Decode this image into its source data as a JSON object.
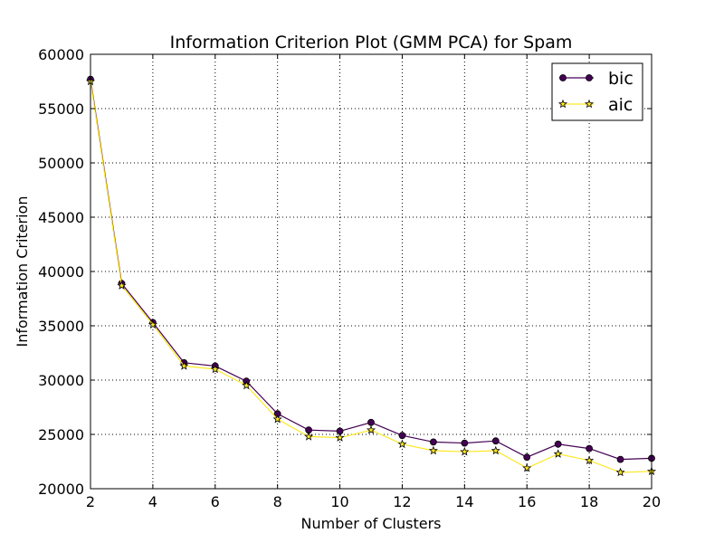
{
  "chart_data": {
    "type": "line",
    "title": "Information Criterion Plot (GMM PCA) for Spam",
    "xlabel": "Number of Clusters",
    "ylabel": "Information Criterion",
    "xlim": [
      2,
      20
    ],
    "ylim": [
      20000,
      60000
    ],
    "xticks": [
      2,
      4,
      6,
      8,
      10,
      12,
      14,
      16,
      18,
      20
    ],
    "yticks": [
      20000,
      25000,
      30000,
      35000,
      40000,
      45000,
      50000,
      55000,
      60000
    ],
    "grid": true,
    "legend_position": "top-right",
    "x": [
      2,
      3,
      4,
      5,
      6,
      7,
      8,
      9,
      10,
      11,
      12,
      13,
      14,
      15,
      16,
      17,
      18,
      19,
      20
    ],
    "series": [
      {
        "name": "bic",
        "color": "#440154",
        "marker": "circle",
        "values": [
          57700,
          38900,
          35300,
          31600,
          31300,
          29900,
          26900,
          25400,
          25300,
          26100,
          24900,
          24300,
          24200,
          24400,
          22900,
          24100,
          23700,
          22700,
          22800
        ]
      },
      {
        "name": "aic",
        "color": "#fde725",
        "marker": "star",
        "values": [
          57500,
          38700,
          35100,
          31300,
          31000,
          29500,
          26400,
          24800,
          24700,
          25400,
          24100,
          23500,
          23400,
          23500,
          21900,
          23200,
          22600,
          21500,
          21600
        ]
      }
    ]
  }
}
